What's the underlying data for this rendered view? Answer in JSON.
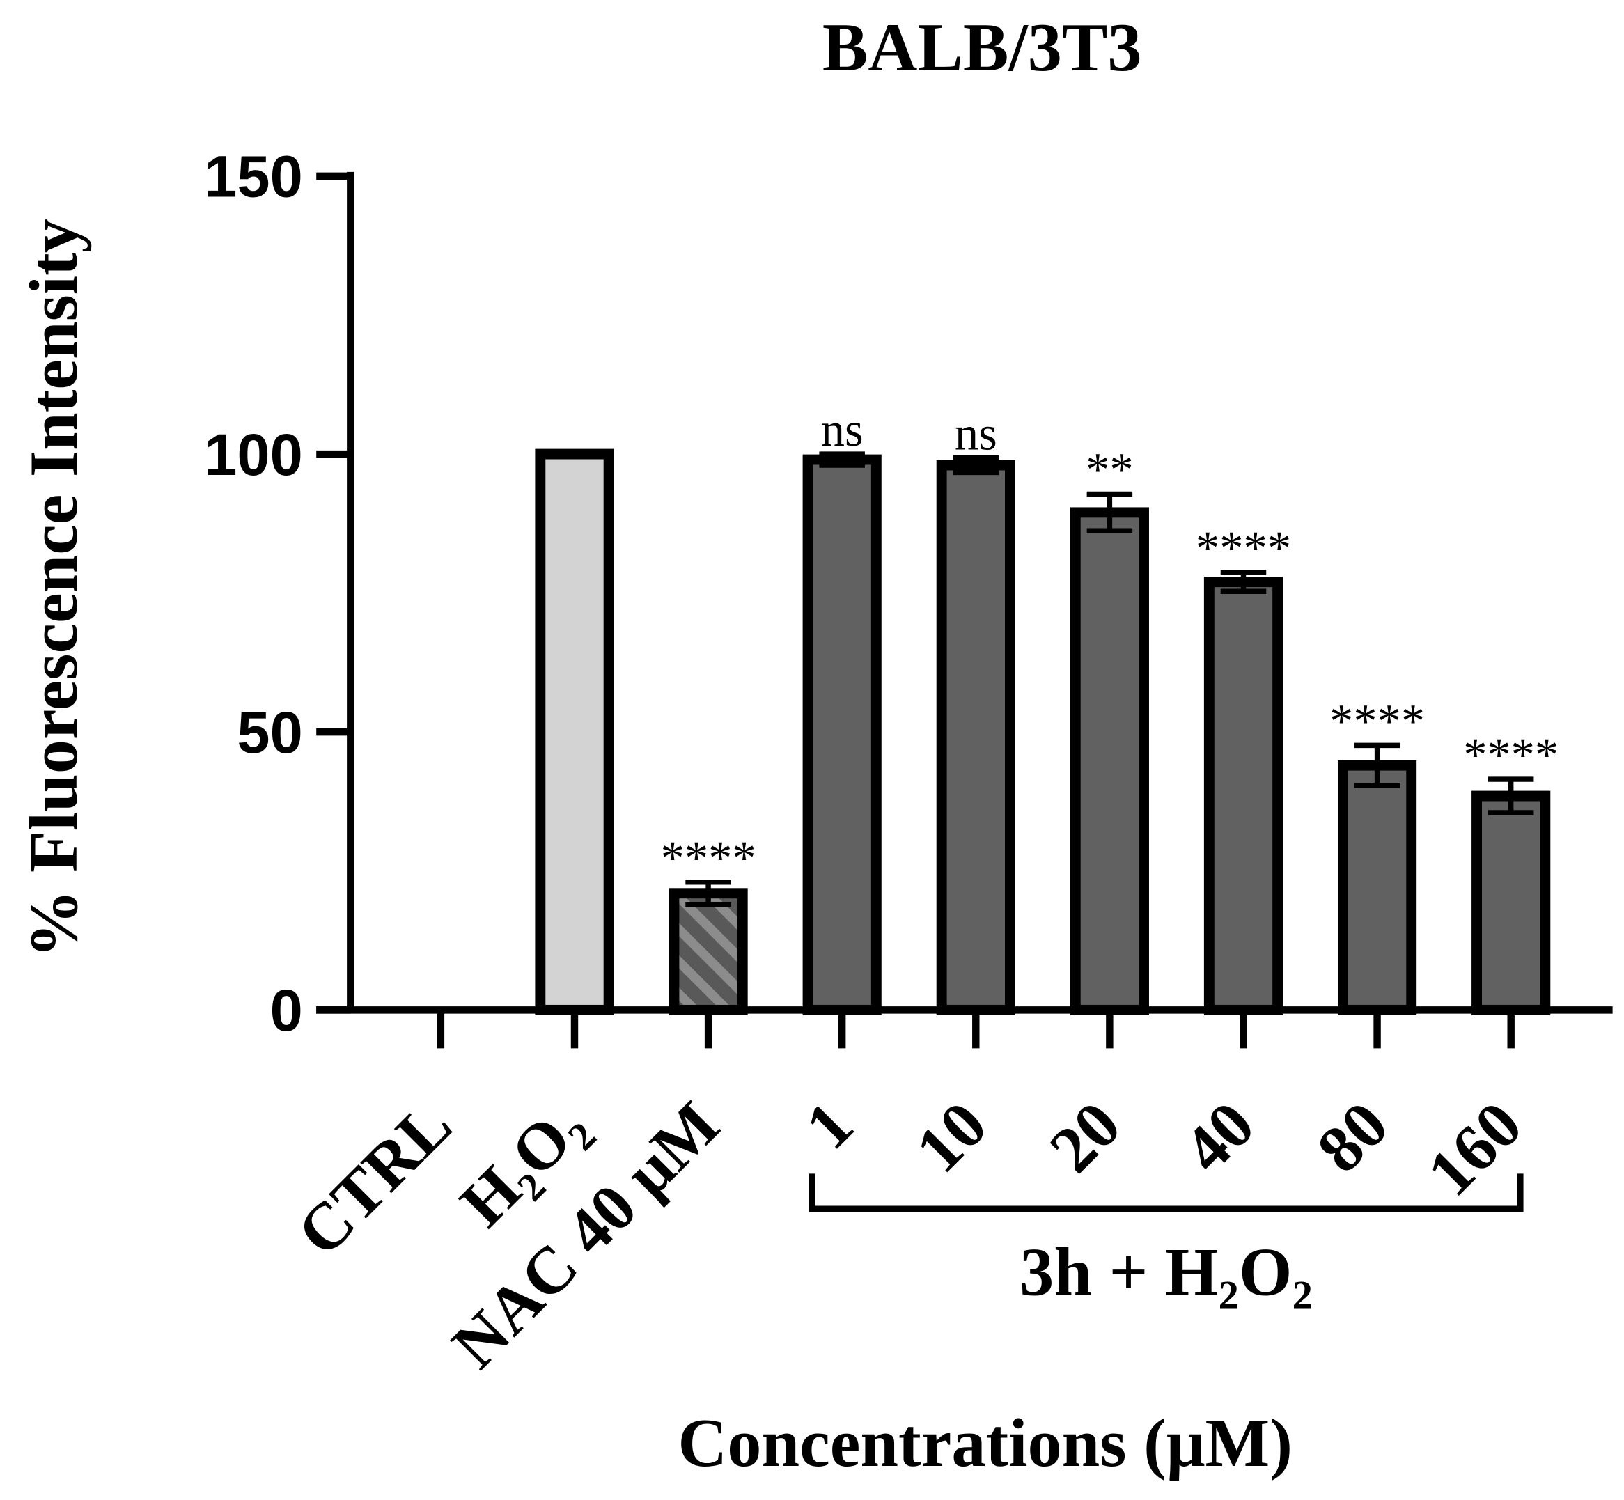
{
  "chart_data": {
    "type": "bar",
    "title": "BALB/3T3",
    "xlabel": "Concentrations (μM)",
    "ylabel": "% Fluorescence Intensity",
    "ylim": [
      0,
      150
    ],
    "yticks": [
      0,
      50,
      100,
      150
    ],
    "ytick_labels": [
      "0",
      "50",
      "100",
      "150"
    ],
    "categories": [
      "CTRL",
      "H₂O₂",
      "NAC 40 μM",
      "1",
      "10",
      "20",
      "40",
      "80",
      "160"
    ],
    "values": [
      null,
      100,
      21,
      99,
      98,
      89.5,
      77,
      44,
      38.5
    ],
    "errors": [
      null,
      null,
      2,
      1,
      1.3,
      3.3,
      1.7,
      3.6,
      3
    ],
    "significance": [
      null,
      null,
      "****",
      "ns",
      "ns",
      "**",
      "****",
      "****",
      "****"
    ],
    "bar_colors": [
      null,
      "#d3d3d3",
      "#595959",
      "#616161",
      "#616161",
      "#616161",
      "#616161",
      "#616161",
      "#616161"
    ],
    "hatched": [
      false,
      false,
      true,
      false,
      false,
      false,
      false,
      false,
      false
    ],
    "group_bracket": {
      "label": "3h + H₂O₂",
      "from_index": 3,
      "to_index": 8
    },
    "grid": false
  },
  "colors": {
    "outline": "#000000",
    "hatch_base": "#595959",
    "hatch_stripe": "#8c8c8c"
  }
}
